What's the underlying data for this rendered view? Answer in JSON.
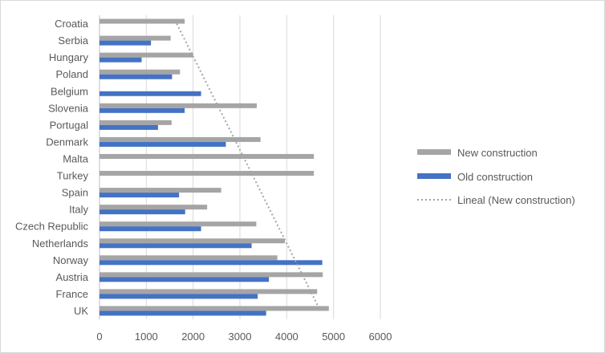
{
  "chart_data": {
    "type": "bar",
    "orientation": "horizontal",
    "categories": [
      "Croatia",
      "Serbia",
      "Hungary",
      "Poland",
      "Belgium",
      "Slovenia",
      "Portugal",
      "Denmark",
      "Malta",
      "Turkey",
      "Spain",
      "Italy",
      "Czech Republic",
      "Netherlands",
      "Norway",
      "Austria",
      "France",
      "UK"
    ],
    "series": [
      {
        "name": "New construction",
        "color": "#a5a5a5",
        "values": [
          1820,
          1520,
          2000,
          1720,
          null,
          3360,
          1540,
          3440,
          4580,
          4580,
          2600,
          2300,
          3350,
          3960,
          3800,
          4770,
          4650,
          4900
        ]
      },
      {
        "name": "Old construction",
        "color": "#4472c4",
        "values": [
          null,
          1100,
          900,
          1550,
          2170,
          1820,
          1250,
          2700,
          null,
          null,
          1700,
          1830,
          2170,
          3250,
          4760,
          3620,
          3380,
          3560
        ]
      }
    ],
    "trendline": {
      "name": "Lineal (New construction)",
      "type": "linear",
      "color": "#a5a5a5",
      "style": "dotted",
      "start": 1650,
      "end": 4720
    },
    "xaxis": {
      "min": 0,
      "max": 6000,
      "step": 1000,
      "ticks": [
        "0",
        "1000",
        "2000",
        "3000",
        "4000",
        "5000",
        "6000"
      ]
    },
    "grid": "vertical",
    "legend_position": "right",
    "title": "",
    "xlabel": "",
    "ylabel": ""
  }
}
